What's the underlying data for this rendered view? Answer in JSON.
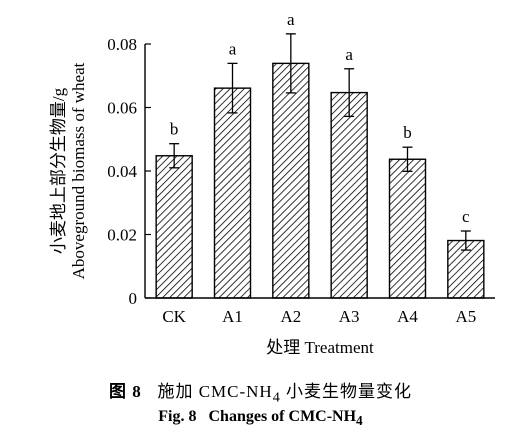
{
  "chart_data": {
    "type": "bar",
    "categories": [
      "CK",
      "A1",
      "A2",
      "A3",
      "A4",
      "A5"
    ],
    "values": [
      0.0448,
      0.0661,
      0.0739,
      0.0647,
      0.0437,
      0.0181
    ],
    "errors": [
      0.0038,
      0.0078,
      0.0093,
      0.0075,
      0.0038,
      0.003
    ],
    "significance": [
      "b",
      "a",
      "a",
      "a",
      "b",
      "c"
    ],
    "xlabel": "处理 Treatment",
    "ylabel_cn": "小麦地上部分生物量/g",
    "ylabel_en": "Aboveground biomass of wheat",
    "ylim": [
      0,
      0.08
    ],
    "yticks": [
      0,
      0.02,
      0.04,
      0.06,
      0.08
    ],
    "ytick_labels": [
      "0",
      "0.02",
      "0.04",
      "0.06",
      "0.08"
    ],
    "bar_pattern": "diagonal-hatch",
    "grid": false
  },
  "caption": {
    "cn_prefix": "图 8",
    "cn_text": "施加 CMC-NH",
    "cn_sub": "4",
    "cn_suffix": " 小麦生物量变化",
    "en_prefix": "Fig. 8",
    "en_text": "Changes of CMC-NH",
    "en_sub": "4"
  }
}
